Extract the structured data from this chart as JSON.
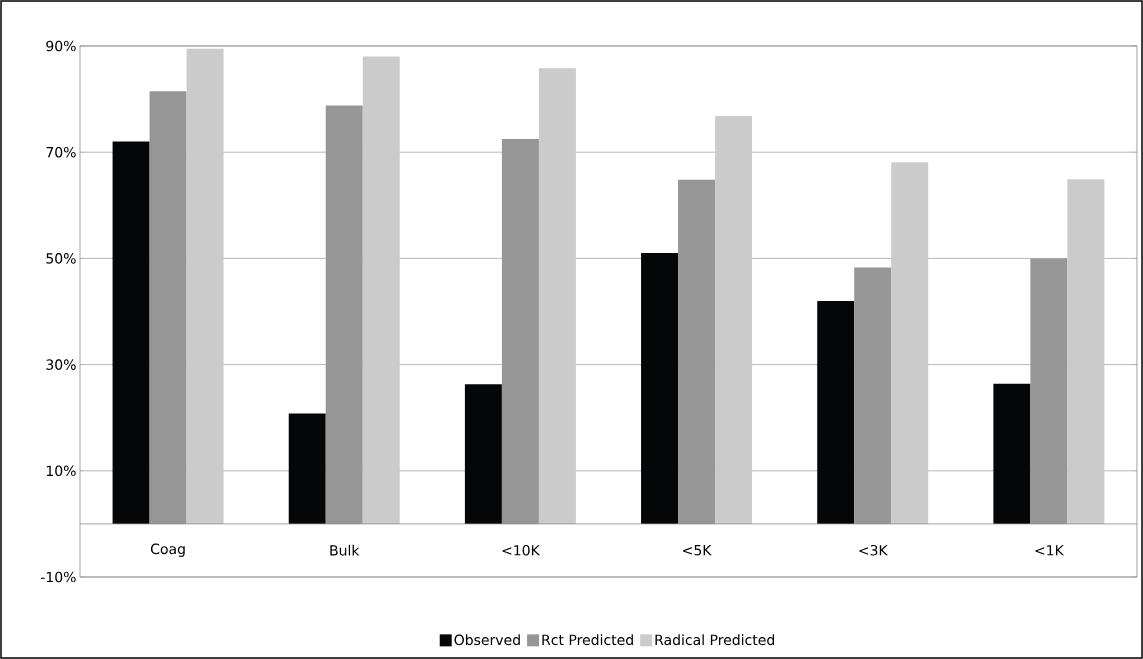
{
  "chart_data": {
    "type": "bar",
    "categories": [
      "Coag",
      "Bulk",
      "<10K",
      "<5K",
      "<3K",
      "<1K"
    ],
    "series": [
      {
        "name": "Observed",
        "color": "#050608",
        "values": [
          72,
          20.8,
          26.3,
          51,
          42,
          26.4
        ]
      },
      {
        "name": "Rct Predicted",
        "color": "#959695",
        "values": [
          81.5,
          78.8,
          72.5,
          64.8,
          48.3,
          50
        ]
      },
      {
        "name": "Radical Predicted",
        "color": "#cbcbcb",
        "values": [
          89.5,
          88,
          85.8,
          76.8,
          68.1,
          64.9
        ]
      }
    ],
    "ylim": [
      -10,
      90
    ],
    "yticks": [
      {
        "value": -10,
        "label": "-10%"
      },
      {
        "value": 10,
        "label": "10%"
      },
      {
        "value": 30,
        "label": "30%"
      },
      {
        "value": 50,
        "label": "50%"
      },
      {
        "value": 70,
        "label": "70%"
      },
      {
        "value": 90,
        "label": "90%"
      }
    ],
    "grid": "y",
    "legend": "bottom"
  }
}
